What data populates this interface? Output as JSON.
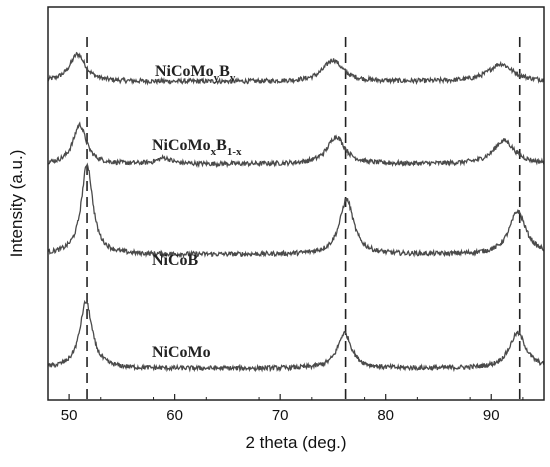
{
  "chart_data": {
    "type": "line",
    "xlabel": "2 theta (deg.)",
    "ylabel": "Intensity (a.u.)",
    "xlim": [
      48,
      95
    ],
    "x_ticks": [
      50,
      60,
      70,
      80,
      90
    ],
    "x_tick_labels": [
      "50",
      "60",
      "70",
      "80",
      "90"
    ],
    "y_ticks_labeled": false,
    "reference_lines_x": [
      51.7,
      76.2,
      92.7
    ],
    "series": [
      {
        "name_main": "NiCoMo",
        "name_sub1": "y",
        "name_main2": "B",
        "name_sub2": "y",
        "color": "#4a4a4a",
        "baseline": 0.81,
        "peaks": [
          {
            "x": 50.8,
            "height": 0.07,
            "width": 0.9
          },
          {
            "x": 75.0,
            "height": 0.055,
            "width": 1.1
          },
          {
            "x": 90.9,
            "height": 0.045,
            "width": 1.4
          }
        ]
      },
      {
        "name_main": "NiCoMo",
        "name_sub1": "x",
        "name_main2": "B",
        "name_sub2": "1-x",
        "color": "#4a4a4a",
        "baseline": 0.6,
        "peaks": [
          {
            "x": 51.0,
            "height": 0.1,
            "width": 0.75
          },
          {
            "x": 59.0,
            "height": 0.015,
            "width": 0.8
          },
          {
            "x": 75.3,
            "height": 0.07,
            "width": 1.0
          },
          {
            "x": 91.2,
            "height": 0.06,
            "width": 1.2
          }
        ]
      },
      {
        "name_main": "NiCoB",
        "name_sub1": "",
        "name_main2": "",
        "name_sub2": "",
        "color": "#4a4a4a",
        "baseline": 0.37,
        "peaks": [
          {
            "x": 51.7,
            "height": 0.23,
            "width": 0.65
          },
          {
            "x": 76.3,
            "height": 0.14,
            "width": 0.8
          },
          {
            "x": 92.5,
            "height": 0.11,
            "width": 0.95
          }
        ]
      },
      {
        "name_main": "NiCoMo",
        "name_sub1": "",
        "name_main2": "",
        "name_sub2": "",
        "color": "#4a4a4a",
        "baseline": 0.08,
        "peaks": [
          {
            "x": 51.6,
            "height": 0.17,
            "width": 0.7
          },
          {
            "x": 76.1,
            "height": 0.09,
            "width": 0.8
          },
          {
            "x": 92.5,
            "height": 0.09,
            "width": 0.95
          }
        ]
      }
    ]
  }
}
